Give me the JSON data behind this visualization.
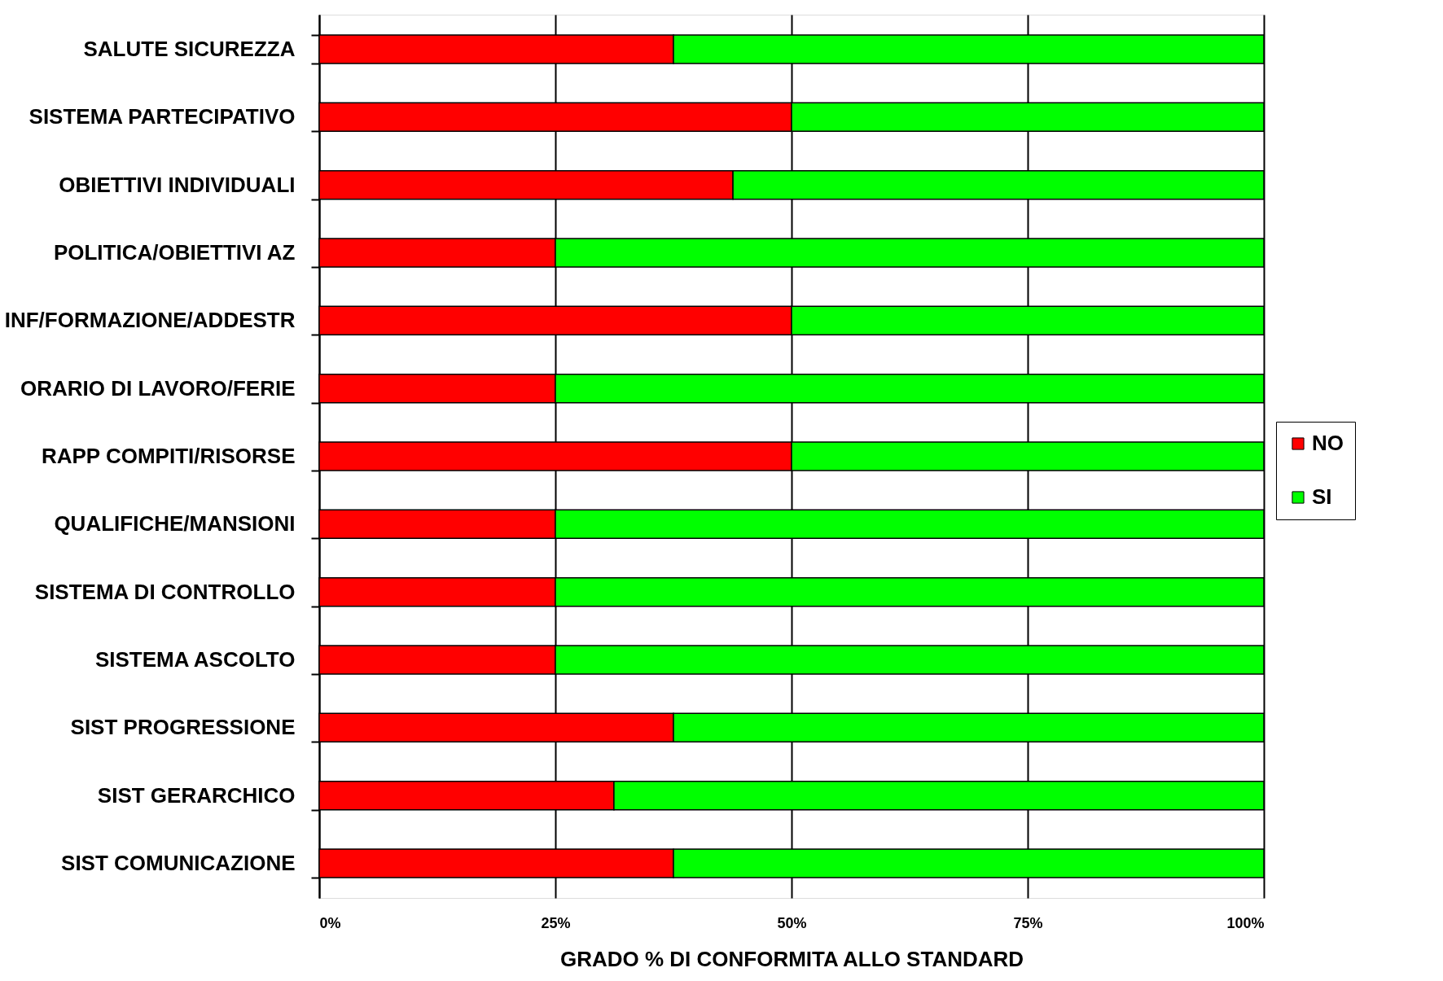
{
  "chart_data": {
    "type": "bar",
    "orientation": "horizontal",
    "stacked": true,
    "xlabel": "GRADO % DI CONFORMITA ALLO STANDARD",
    "categories": [
      "SALUTE SICUREZZA",
      "SISTEMA PARTECIPATIVO",
      "OBIETTIVI INDIVIDUALI",
      "POLITICA/OBIETTIVI AZ",
      "INF/FORMAZIONE/ADDESTR",
      "ORARIO DI LAVORO/FERIE",
      "RAPP COMPITI/RISORSE",
      "QUALIFICHE/MANSIONI",
      "SISTEMA DI CONTROLLO",
      "SISTEMA ASCOLTO",
      "SIST PROGRESSIONE",
      "SIST GERARCHICO",
      "SIST COMUNICAZIONE"
    ],
    "series": [
      {
        "name": "NO",
        "color": "#ff0000",
        "values": [
          37.5,
          50,
          43.8,
          25,
          50,
          25,
          50,
          25,
          25,
          25,
          37.5,
          31.2,
          37.5
        ]
      },
      {
        "name": "SI",
        "color": "#00ff00",
        "values": [
          62.5,
          50,
          56.2,
          75,
          50,
          75,
          50,
          75,
          75,
          75,
          62.5,
          68.8,
          62.5
        ]
      }
    ],
    "xlim": [
      0,
      100
    ],
    "xticks": [
      {
        "value": 0,
        "label": "0%"
      },
      {
        "value": 25,
        "label": "25%"
      },
      {
        "value": 50,
        "label": "50%"
      },
      {
        "value": 75,
        "label": "75%"
      },
      {
        "value": 100,
        "label": "100%"
      }
    ],
    "grid": "x",
    "legend": "right"
  }
}
